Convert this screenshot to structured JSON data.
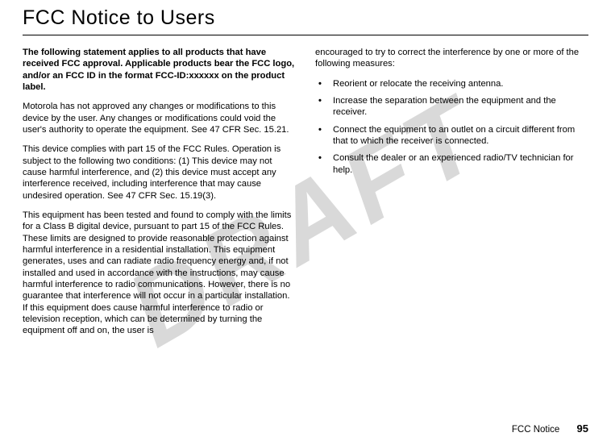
{
  "watermark": "DRAFT",
  "title": "FCC Notice to Users",
  "col1": {
    "intro": "The following statement applies to all products that have received FCC approval. Applicable products bear the FCC logo, and/or an FCC ID in the format FCC-ID:xxxxxx on the product label.",
    "p1": "Motorola has not approved any changes or modifications to this device by the user. Any changes or modifications could void the user's authority to operate the equipment. See 47 CFR Sec. 15.21.",
    "p2": "This device complies with part 15 of the FCC Rules. Operation is subject to the following two conditions: (1) This device may not cause harmful interference, and (2) this device must accept any interference received, including interference that may cause undesired operation. See 47 CFR Sec. 15.19(3).",
    "p3": "This equipment has been tested and found to comply with the limits for a Class B digital device, pursuant to part 15 of the FCC Rules. These limits are designed to provide reasonable protection against harmful interference in a residential installation. This equipment generates, uses and can radiate radio frequency energy and, if not installed and used in accordance with the instructions, may cause harmful interference to radio communications. However, there is no guarantee that interference will not occur in a particular installation. If this equipment does cause harmful interference to radio or television reception, which can be determined by turning the equipment off and on, the user is"
  },
  "col2": {
    "lead": "encouraged to try to correct the interference by one or more of the following measures:",
    "bullets": [
      "Reorient or relocate the receiving antenna.",
      "Increase the separation between the equipment and the receiver.",
      "Connect the equipment to an outlet on a circuit different from that to which the receiver is connected.",
      "Consult the dealer or an experienced radio/TV technician for help."
    ]
  },
  "footer": {
    "label": "FCC Notice",
    "page": "95"
  },
  "colors": {
    "text": "#000000",
    "watermark": "#d9d9d9",
    "bg": "#ffffff"
  }
}
